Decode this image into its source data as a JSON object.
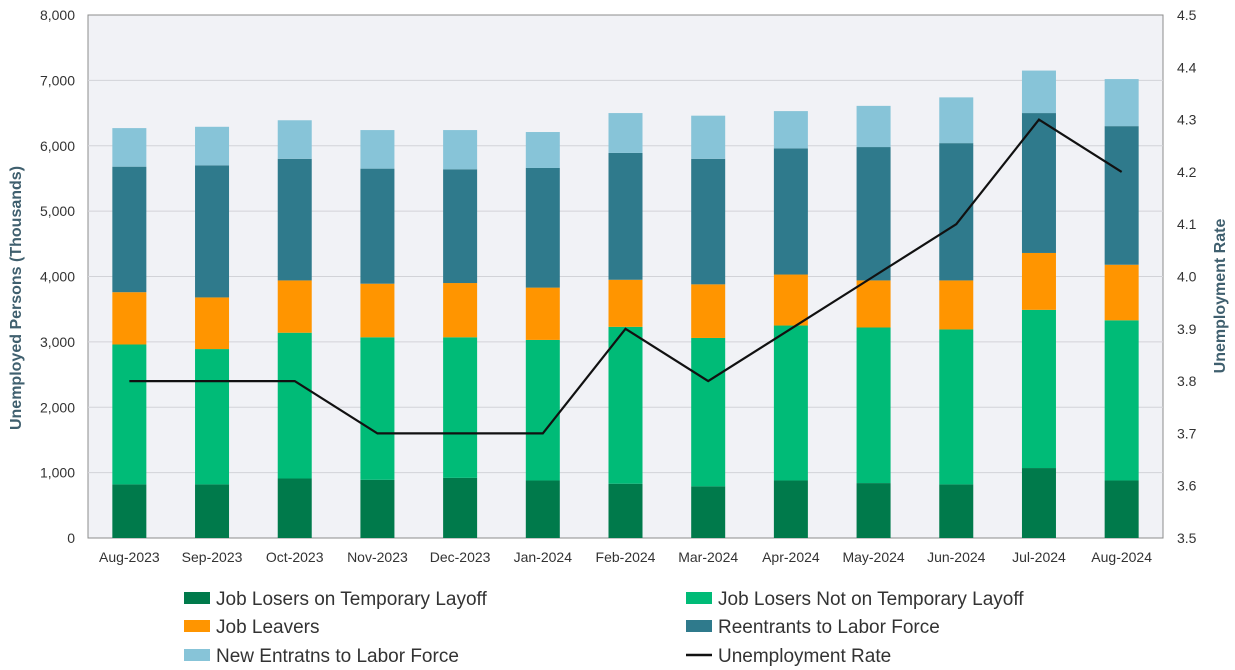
{
  "chart_data": {
    "type": "bar",
    "stacked": true,
    "title": "",
    "categories": [
      "Aug-2023",
      "Sep-2023",
      "Oct-2023",
      "Nov-2023",
      "Dec-2023",
      "Jan-2024",
      "Feb-2024",
      "Mar-2024",
      "Apr-2024",
      "May-2024",
      "Jun-2024",
      "Jul-2024",
      "Aug-2024"
    ],
    "y_left": {
      "label": "Unemployed Persons (Thousands)",
      "range": [
        0,
        8000
      ],
      "ticks": [
        "0",
        "1,000",
        "2,000",
        "3,000",
        "4,000",
        "5,000",
        "6,000",
        "7,000",
        "8,000"
      ]
    },
    "y_right": {
      "label": "Unemployment Rate",
      "range": [
        3.5,
        4.5
      ],
      "ticks": [
        "3.5",
        "3.6",
        "3.7",
        "3.8",
        "3.9",
        "4.0",
        "4.1",
        "4.2",
        "4.3",
        "4.4",
        "4.5"
      ]
    },
    "grid": true,
    "legend_position": "bottom",
    "series": [
      {
        "name": "Job Losers on Temporary Layoff",
        "color": "#007a4b",
        "values": [
          820,
          820,
          910,
          890,
          920,
          880,
          830,
          790,
          880,
          840,
          820,
          1070,
          880
        ]
      },
      {
        "name": "Job Losers Not on Temporary Layoff",
        "color": "#00bb77",
        "values": [
          2140,
          2070,
          2230,
          2180,
          2150,
          2150,
          2400,
          2270,
          2370,
          2380,
          2370,
          2420,
          2450
        ]
      },
      {
        "name": "Job Leavers",
        "color": "#ff9500",
        "values": [
          800,
          790,
          800,
          820,
          830,
          800,
          720,
          820,
          780,
          720,
          750,
          870,
          850
        ]
      },
      {
        "name": "Reentrants to Labor Force",
        "color": "#2f7a8c",
        "values": [
          1920,
          2020,
          1860,
          1760,
          1740,
          1830,
          1940,
          1920,
          1930,
          2040,
          2100,
          2140,
          2120
        ]
      },
      {
        "name": "New Entratns to Labor Force",
        "color": "#87c4d8",
        "values": [
          590,
          590,
          590,
          590,
          600,
          550,
          610,
          660,
          570,
          630,
          700,
          650,
          720
        ]
      }
    ],
    "line_series": {
      "name": "Unemployment Rate",
      "color": "#111111",
      "axis": "right",
      "values": [
        3.8,
        3.8,
        3.8,
        3.7,
        3.7,
        3.7,
        3.9,
        3.8,
        3.9,
        4.0,
        4.1,
        4.3,
        4.2
      ]
    }
  }
}
